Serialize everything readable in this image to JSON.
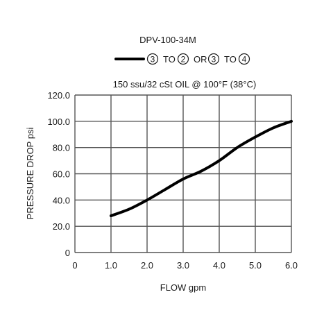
{
  "chart_data": {
    "type": "line",
    "title": "DPV-100-34M",
    "subtitle": "150 ssu/32 cSt OIL @ 100°F (38°C)",
    "xlabel": "FLOW gpm",
    "ylabel": "PRESSURE DROP psi",
    "xlim": [
      0,
      6
    ],
    "ylim": [
      0,
      120
    ],
    "x_ticks": [
      "0",
      "1.0",
      "2.0",
      "3.0",
      "4.0",
      "5.0",
      "6.0"
    ],
    "y_ticks": [
      "0",
      "20.0",
      "40.0",
      "60.0",
      "80.0",
      "100.0",
      "120.0"
    ],
    "grid": true,
    "legend": {
      "placement": "top-center",
      "parts": [
        {
          "kind": "circled",
          "text": "3"
        },
        {
          "kind": "text",
          "text": "TO"
        },
        {
          "kind": "circled",
          "text": "2"
        },
        {
          "kind": "text",
          "text": "OR"
        },
        {
          "kind": "circled",
          "text": "3"
        },
        {
          "kind": "text",
          "text": "TO"
        },
        {
          "kind": "circled",
          "text": "4"
        }
      ]
    },
    "series": [
      {
        "color": "#000000",
        "x": [
          1.0,
          1.5,
          2.0,
          2.5,
          3.0,
          3.5,
          4.0,
          4.5,
          5.0,
          5.5,
          6.0
        ],
        "y": [
          28,
          33,
          40,
          48,
          56,
          62,
          70,
          80,
          88,
          95,
          100
        ]
      }
    ]
  }
}
